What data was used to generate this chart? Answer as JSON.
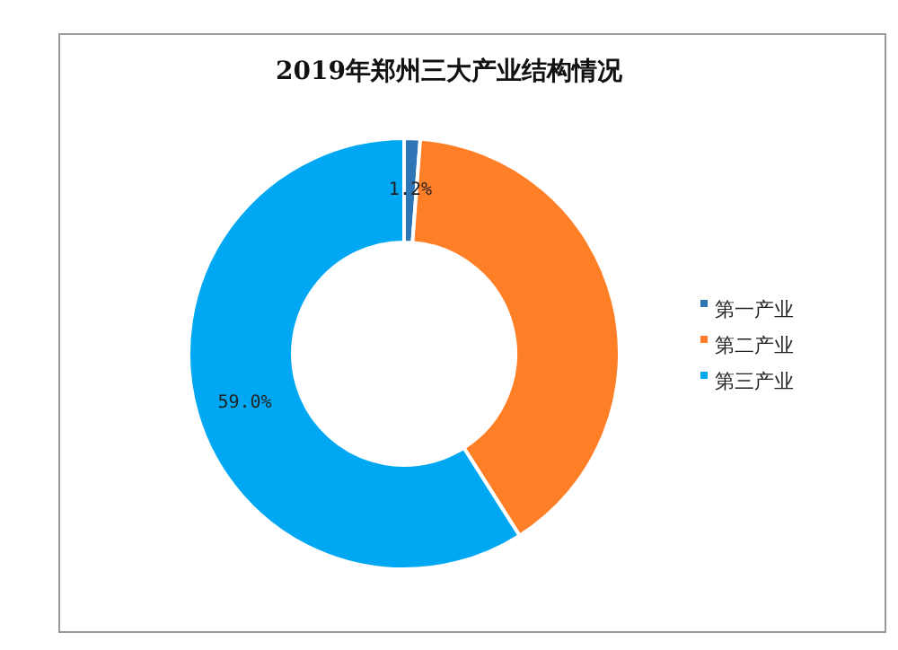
{
  "chart_data": {
    "type": "donut",
    "title": "2019年郑州三大产业结构情况",
    "categories": [
      "第一产业",
      "第二产业",
      "第三产业"
    ],
    "values": [
      1.2,
      39.8,
      59.0
    ],
    "value_labels": [
      "1.2%",
      null,
      "59.0%"
    ],
    "colors": [
      "#2e75b6",
      "#ff7f27",
      "#00a8f3"
    ],
    "legend": "right"
  }
}
